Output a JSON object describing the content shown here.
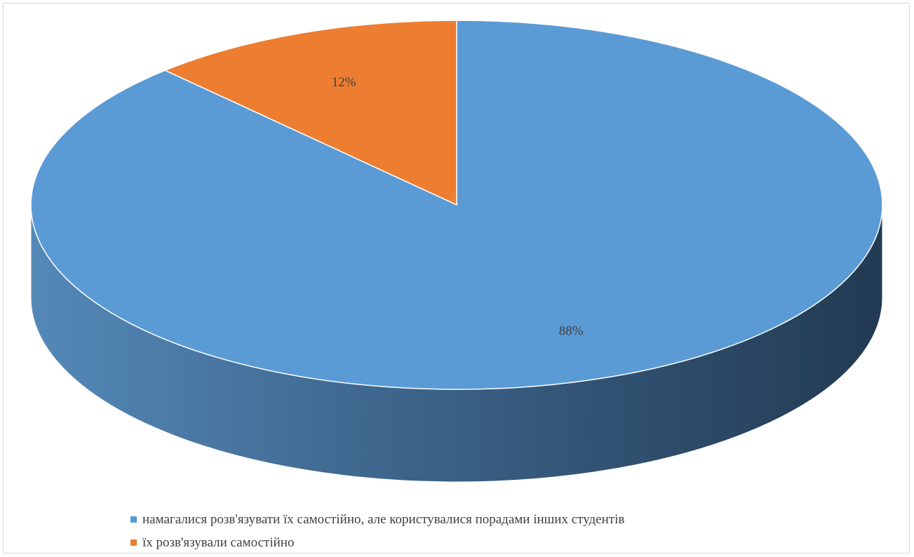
{
  "chart_data": {
    "type": "pie",
    "style": "3d",
    "title": "",
    "slices": [
      {
        "label": "намагалися розв'язувати їх самостійно, але користувалися порадами інших студентів",
        "value": 88,
        "display": "88%",
        "color": "#5b9bd5"
      },
      {
        "label": "їх розв'язували самостійно",
        "value": 12,
        "display": "12%",
        "color": "#ed7d31"
      }
    ],
    "legend_position": "bottom"
  }
}
